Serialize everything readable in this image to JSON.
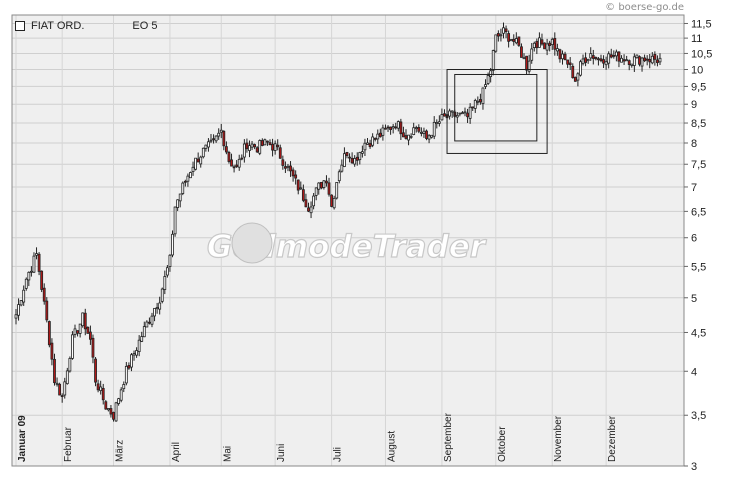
{
  "credit": "© boerse-go.de",
  "legend": {
    "symbol": "FIAT ORD.",
    "indicator": "EO 5"
  },
  "watermark": "GodmodeTrader",
  "colors": {
    "up": "#ffffff",
    "down": "#b01818",
    "grid": "#cfcfcf",
    "plot_bg": "#efefef"
  },
  "chart_data": {
    "type": "candlestick",
    "title": "",
    "xlabel": "",
    "ylabel": "",
    "y_scale": "log",
    "ylim": [
      3.0,
      11.8
    ],
    "y_ticks": [
      3,
      3.5,
      4,
      4.5,
      5,
      5.5,
      6,
      6.5,
      7,
      7.5,
      8,
      8.5,
      9,
      9.5,
      10,
      10.5,
      11,
      11.5
    ],
    "y_tick_labels": [
      "3",
      "3,5",
      "4",
      "4,5",
      "5",
      "5,5",
      "6",
      "6,5",
      "7",
      "7,5",
      "8",
      "8,5",
      "9",
      "9,5",
      "10",
      "10,5",
      "11",
      "11,5"
    ],
    "grid": true,
    "month_labels": [
      "Januar 09",
      "Februar",
      "März",
      "April",
      "Mai",
      "Juni",
      "Juli",
      "August",
      "September",
      "Oktober",
      "November",
      "Dezember"
    ],
    "month_day_index": [
      0,
      18,
      38,
      60,
      80,
      101,
      123,
      144,
      166,
      187,
      209,
      230
    ],
    "n_days": 252,
    "close_anchors": [
      [
        0,
        4.75
      ],
      [
        4,
        5.3
      ],
      [
        8,
        5.7
      ],
      [
        11,
        4.9
      ],
      [
        15,
        3.9
      ],
      [
        18,
        3.7
      ],
      [
        22,
        4.4
      ],
      [
        26,
        4.7
      ],
      [
        29,
        4.4
      ],
      [
        31,
        3.9
      ],
      [
        35,
        3.6
      ],
      [
        38,
        3.5
      ],
      [
        43,
        4.0
      ],
      [
        47,
        4.3
      ],
      [
        52,
        4.7
      ],
      [
        56,
        5.0
      ],
      [
        60,
        5.6
      ],
      [
        62,
        6.6
      ],
      [
        65,
        7.0
      ],
      [
        69,
        7.5
      ],
      [
        73,
        7.8
      ],
      [
        77,
        8.0
      ],
      [
        80,
        8.3
      ],
      [
        83,
        7.6
      ],
      [
        86,
        7.4
      ],
      [
        90,
        8.0
      ],
      [
        94,
        7.9
      ],
      [
        98,
        8.0
      ],
      [
        101,
        7.9
      ],
      [
        104,
        7.6
      ],
      [
        108,
        7.2
      ],
      [
        111,
        6.9
      ],
      [
        114,
        6.6
      ],
      [
        118,
        7.0
      ],
      [
        121,
        7.2
      ],
      [
        123,
        6.6
      ],
      [
        126,
        7.4
      ],
      [
        129,
        7.8
      ],
      [
        132,
        7.6
      ],
      [
        136,
        8.0
      ],
      [
        140,
        8.1
      ],
      [
        144,
        8.3
      ],
      [
        148,
        8.5
      ],
      [
        152,
        8.2
      ],
      [
        156,
        8.4
      ],
      [
        160,
        8.1
      ],
      [
        163,
        8.4
      ],
      [
        166,
        8.6
      ],
      [
        170,
        8.7
      ],
      [
        173,
        8.7
      ],
      [
        176,
        8.65
      ],
      [
        179,
        9.0
      ],
      [
        182,
        9.3
      ],
      [
        185,
        10.0
      ],
      [
        187,
        11.0
      ],
      [
        190,
        11.2
      ],
      [
        193,
        11.0
      ],
      [
        196,
        10.7
      ],
      [
        199,
        10.1
      ],
      [
        202,
        10.9
      ],
      [
        205,
        10.8
      ],
      [
        209,
        10.9
      ],
      [
        212,
        10.4
      ],
      [
        215,
        10.2
      ],
      [
        218,
        9.7
      ],
      [
        221,
        10.3
      ],
      [
        224,
        10.5
      ],
      [
        227,
        10.3
      ],
      [
        230,
        10.4
      ],
      [
        235,
        10.4
      ],
      [
        240,
        10.3
      ],
      [
        245,
        10.35
      ],
      [
        251,
        10.3
      ]
    ],
    "annotations": [
      {
        "shape": "rectangle",
        "x_range_index": [
          168,
          207
        ],
        "y_range": [
          7.75,
          10.0
        ]
      },
      {
        "shape": "rectangle",
        "x_range_index": [
          171,
          203
        ],
        "y_range": [
          8.05,
          9.85
        ]
      }
    ]
  }
}
